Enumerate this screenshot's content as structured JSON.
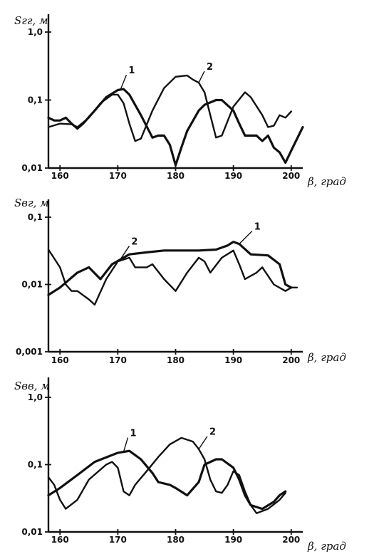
{
  "chart_data": [
    {
      "type": "line",
      "ylabel": "Sгг, м",
      "xlabel": "β, град",
      "yscale": "log",
      "xlim": [
        158,
        202
      ],
      "ylim": [
        0.01,
        1.0
      ],
      "xticks": [
        "160",
        "170",
        "180",
        "190",
        "200"
      ],
      "yticks": [
        {
          "v": 1.0,
          "t": "1,0"
        },
        {
          "v": 0.1,
          "t": "0,1"
        },
        {
          "v": 0.01,
          "t": "0,01"
        }
      ],
      "series": [
        {
          "name": "1",
          "points": [
            [
              158,
              0.055
            ],
            [
              159,
              0.05
            ],
            [
              160,
              0.05
            ],
            [
              161,
              0.055
            ],
            [
              162,
              0.045
            ],
            [
              163,
              0.038
            ],
            [
              164,
              0.045
            ],
            [
              166,
              0.07
            ],
            [
              168,
              0.11
            ],
            [
              170,
              0.14
            ],
            [
              171,
              0.145
            ],
            [
              172,
              0.12
            ],
            [
              174,
              0.06
            ],
            [
              176,
              0.028
            ],
            [
              177,
              0.03
            ],
            [
              178,
              0.03
            ],
            [
              179,
              0.022
            ],
            [
              180,
              0.011
            ],
            [
              181,
              0.02
            ],
            [
              182,
              0.035
            ],
            [
              184,
              0.07
            ],
            [
              185,
              0.085
            ],
            [
              187,
              0.1
            ],
            [
              188,
              0.1
            ],
            [
              190,
              0.07
            ],
            [
              191,
              0.045
            ],
            [
              192,
              0.03
            ],
            [
              194,
              0.03
            ],
            [
              195,
              0.025
            ],
            [
              196,
              0.03
            ],
            [
              197,
              0.02
            ],
            [
              198,
              0.017
            ],
            [
              199,
              0.012
            ],
            [
              200,
              0.018
            ],
            [
              202,
              0.04
            ]
          ]
        },
        {
          "name": "2",
          "points": [
            [
              158,
              0.04
            ],
            [
              160,
              0.045
            ],
            [
              162,
              0.044
            ],
            [
              163,
              0.04
            ],
            [
              165,
              0.055
            ],
            [
              167,
              0.09
            ],
            [
              169,
              0.12
            ],
            [
              170,
              0.12
            ],
            [
              171,
              0.09
            ],
            [
              172,
              0.045
            ],
            [
              173,
              0.025
            ],
            [
              174,
              0.027
            ],
            [
              176,
              0.07
            ],
            [
              178,
              0.15
            ],
            [
              180,
              0.22
            ],
            [
              182,
              0.23
            ],
            [
              183,
              0.2
            ],
            [
              184,
              0.18
            ],
            [
              185,
              0.13
            ],
            [
              186,
              0.06
            ],
            [
              187,
              0.028
            ],
            [
              188,
              0.03
            ],
            [
              190,
              0.08
            ],
            [
              192,
              0.13
            ],
            [
              193,
              0.11
            ],
            [
              195,
              0.06
            ],
            [
              196,
              0.04
            ],
            [
              197,
              0.042
            ],
            [
              198,
              0.06
            ],
            [
              199,
              0.055
            ],
            [
              200,
              0.068
            ]
          ]
        }
      ]
    },
    {
      "type": "line",
      "ylabel": "Sвг, м",
      "xlabel": "β, град",
      "yscale": "log",
      "xlim": [
        158,
        202
      ],
      "ylim": [
        0.001,
        0.1
      ],
      "xticks": [
        "160",
        "170",
        "180",
        "190",
        "200"
      ],
      "yticks": [
        {
          "v": 0.1,
          "t": "0,1"
        },
        {
          "v": 0.01,
          "t": "0,01"
        },
        {
          "v": 0.001,
          "t": "0,001"
        }
      ],
      "series": [
        {
          "name": "1",
          "points": [
            [
              158,
              0.007
            ],
            [
              160,
              0.009
            ],
            [
              163,
              0.015
            ],
            [
              165,
              0.018
            ],
            [
              167,
              0.012
            ],
            [
              169,
              0.02
            ],
            [
              172,
              0.028
            ],
            [
              175,
              0.03
            ],
            [
              178,
              0.032
            ],
            [
              181,
              0.032
            ],
            [
              184,
              0.032
            ],
            [
              187,
              0.033
            ],
            [
              189,
              0.038
            ],
            [
              190,
              0.043
            ],
            [
              191,
              0.04
            ],
            [
              193,
              0.028
            ],
            [
              196,
              0.027
            ],
            [
              198,
              0.02
            ],
            [
              199,
              0.01
            ],
            [
              200,
              0.009
            ]
          ]
        },
        {
          "name": "2",
          "points": [
            [
              158,
              0.033
            ],
            [
              160,
              0.018
            ],
            [
              161,
              0.01
            ],
            [
              162,
              0.008
            ],
            [
              163,
              0.008
            ],
            [
              165,
              0.006
            ],
            [
              166,
              0.005
            ],
            [
              168,
              0.012
            ],
            [
              170,
              0.022
            ],
            [
              172,
              0.025
            ],
            [
              173,
              0.018
            ],
            [
              175,
              0.018
            ],
            [
              176,
              0.02
            ],
            [
              178,
              0.012
            ],
            [
              180,
              0.008
            ],
            [
              182,
              0.015
            ],
            [
              184,
              0.025
            ],
            [
              185,
              0.022
            ],
            [
              186,
              0.015
            ],
            [
              188,
              0.025
            ],
            [
              190,
              0.032
            ],
            [
              191,
              0.02
            ],
            [
              192,
              0.012
            ],
            [
              194,
              0.015
            ],
            [
              195,
              0.018
            ],
            [
              197,
              0.01
            ],
            [
              199,
              0.008
            ],
            [
              200,
              0.009
            ],
            [
              201,
              0.009
            ]
          ]
        }
      ]
    },
    {
      "type": "line",
      "ylabel": "Sвв, м",
      "xlabel": "β, град",
      "yscale": "log",
      "xlim": [
        158,
        202
      ],
      "ylim": [
        0.01,
        1.0
      ],
      "xticks": [
        "160",
        "170",
        "180",
        "190",
        "200"
      ],
      "yticks": [
        {
          "v": 1.0,
          "t": "1,0"
        },
        {
          "v": 0.1,
          "t": "0,1"
        },
        {
          "v": 0.01,
          "t": "0,01"
        }
      ],
      "series": [
        {
          "name": "1",
          "points": [
            [
              158,
              0.035
            ],
            [
              160,
              0.045
            ],
            [
              163,
              0.07
            ],
            [
              166,
              0.11
            ],
            [
              170,
              0.15
            ],
            [
              172,
              0.16
            ],
            [
              174,
              0.12
            ],
            [
              176,
              0.075
            ],
            [
              177,
              0.055
            ],
            [
              179,
              0.05
            ],
            [
              180,
              0.045
            ],
            [
              182,
              0.035
            ],
            [
              184,
              0.055
            ],
            [
              185,
              0.1
            ],
            [
              187,
              0.12
            ],
            [
              188,
              0.12
            ],
            [
              190,
              0.09
            ],
            [
              191,
              0.06
            ],
            [
              192,
              0.035
            ],
            [
              193,
              0.025
            ],
            [
              195,
              0.022
            ],
            [
              197,
              0.028
            ],
            [
              198,
              0.035
            ],
            [
              199,
              0.04
            ]
          ]
        },
        {
          "name": "2",
          "points": [
            [
              158,
              0.065
            ],
            [
              159,
              0.05
            ],
            [
              160,
              0.03
            ],
            [
              161,
              0.022
            ],
            [
              163,
              0.03
            ],
            [
              165,
              0.06
            ],
            [
              168,
              0.1
            ],
            [
              169,
              0.11
            ],
            [
              170,
              0.09
            ],
            [
              171,
              0.04
            ],
            [
              172,
              0.035
            ],
            [
              173,
              0.05
            ],
            [
              175,
              0.08
            ],
            [
              177,
              0.13
            ],
            [
              179,
              0.2
            ],
            [
              181,
              0.25
            ],
            [
              183,
              0.22
            ],
            [
              184,
              0.17
            ],
            [
              185,
              0.12
            ],
            [
              186,
              0.06
            ],
            [
              187,
              0.04
            ],
            [
              188,
              0.038
            ],
            [
              189,
              0.05
            ],
            [
              190,
              0.08
            ],
            [
              191,
              0.07
            ],
            [
              192,
              0.04
            ],
            [
              193,
              0.025
            ],
            [
              194,
              0.019
            ],
            [
              196,
              0.022
            ],
            [
              198,
              0.03
            ],
            [
              199,
              0.038
            ]
          ]
        }
      ]
    }
  ]
}
